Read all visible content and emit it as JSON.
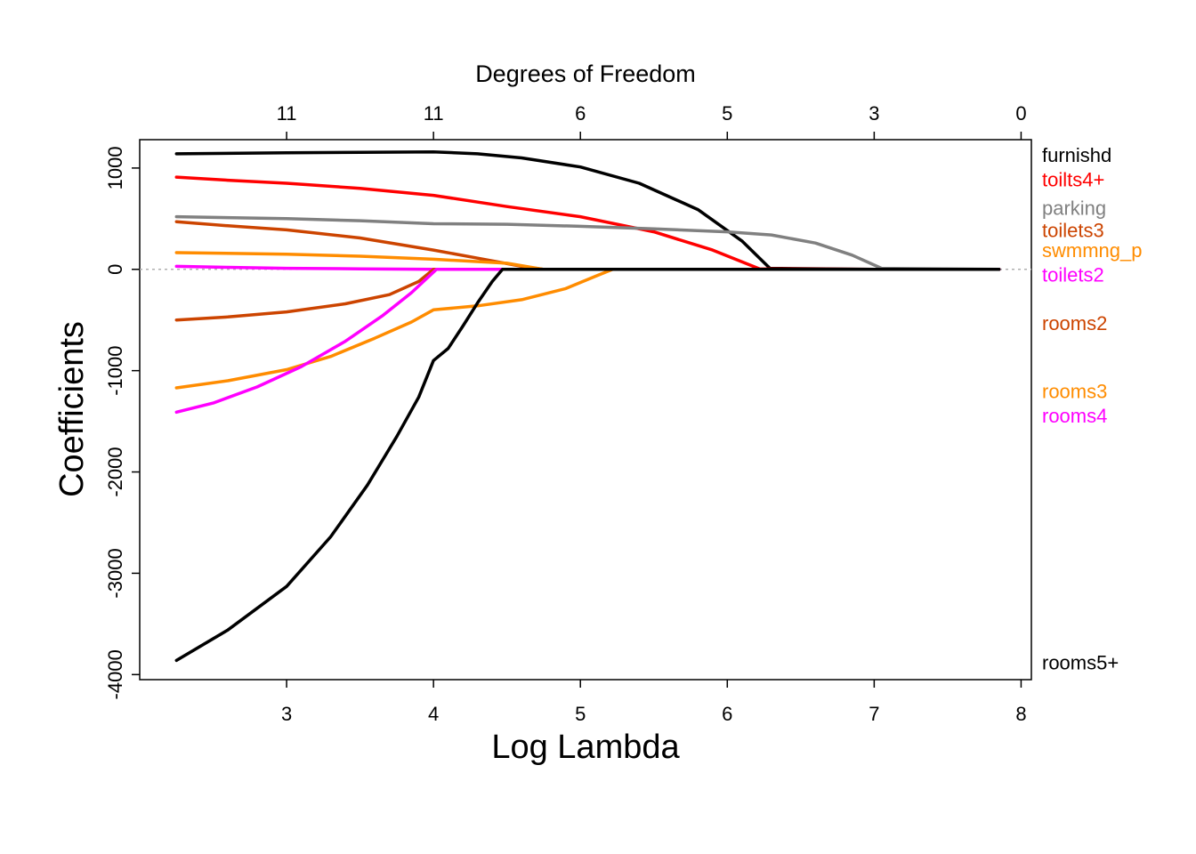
{
  "chart_data": {
    "type": "line",
    "title": "",
    "xlabel": "Log Lambda",
    "ylabel": "Coefficients",
    "top_axis_label": "Degrees of Freedom",
    "xlim": [
      2.0,
      8.07
    ],
    "ylim": [
      -4050,
      1280
    ],
    "x_ticks": [
      3,
      4,
      5,
      6,
      7,
      8
    ],
    "y_ticks": [
      -4000,
      -3000,
      -2000,
      -1000,
      0,
      1000
    ],
    "top_ticks": [
      {
        "x": 3,
        "label": "11"
      },
      {
        "x": 4,
        "label": "11"
      },
      {
        "x": 5,
        "label": "6"
      },
      {
        "x": 6,
        "label": "5"
      },
      {
        "x": 7,
        "label": "3"
      },
      {
        "x": 8,
        "label": "0"
      }
    ],
    "zero_line": true,
    "grid": false,
    "legend": "right-margin labels",
    "series": [
      {
        "name": "furnishd",
        "color": "#000000",
        "label_y": 1130,
        "points": [
          [
            2.25,
            1140
          ],
          [
            3.0,
            1150
          ],
          [
            3.5,
            1155
          ],
          [
            4.0,
            1160
          ],
          [
            4.3,
            1140
          ],
          [
            4.6,
            1100
          ],
          [
            5.0,
            1010
          ],
          [
            5.4,
            850
          ],
          [
            5.8,
            590
          ],
          [
            6.1,
            280
          ],
          [
            6.29,
            10
          ],
          [
            7.0,
            0
          ],
          [
            7.85,
            0
          ]
        ]
      },
      {
        "name": "toilts4+",
        "color": "#ff0000",
        "label_y": 890,
        "points": [
          [
            2.25,
            910
          ],
          [
            2.6,
            880
          ],
          [
            3.0,
            850
          ],
          [
            3.5,
            800
          ],
          [
            4.0,
            730
          ],
          [
            4.5,
            620
          ],
          [
            5.0,
            520
          ],
          [
            5.5,
            370
          ],
          [
            5.9,
            190
          ],
          [
            6.22,
            5
          ],
          [
            7.0,
            0
          ],
          [
            7.85,
            0
          ]
        ]
      },
      {
        "name": "parking",
        "color": "#808080",
        "label_y": 610,
        "points": [
          [
            2.25,
            520
          ],
          [
            3.0,
            500
          ],
          [
            3.5,
            480
          ],
          [
            4.0,
            450
          ],
          [
            4.5,
            445
          ],
          [
            5.0,
            425
          ],
          [
            5.5,
            400
          ],
          [
            6.0,
            370
          ],
          [
            6.3,
            340
          ],
          [
            6.6,
            260
          ],
          [
            6.85,
            140
          ],
          [
            7.05,
            10
          ],
          [
            7.85,
            0
          ]
        ]
      },
      {
        "name": "toilets3",
        "color": "#cc4400",
        "label_y": 390,
        "points": [
          [
            2.25,
            470
          ],
          [
            2.6,
            430
          ],
          [
            3.0,
            390
          ],
          [
            3.5,
            310
          ],
          [
            4.0,
            190
          ],
          [
            4.3,
            110
          ],
          [
            4.6,
            30
          ],
          [
            4.75,
            0
          ],
          [
            7.85,
            0
          ]
        ]
      },
      {
        "name": "swmmng_p",
        "color": "#ff8c00",
        "label_y": 190,
        "points": [
          [
            2.25,
            165
          ],
          [
            3.0,
            150
          ],
          [
            3.5,
            130
          ],
          [
            4.0,
            100
          ],
          [
            4.5,
            60
          ],
          [
            4.75,
            0
          ],
          [
            7.85,
            0
          ]
        ]
      },
      {
        "name": "toilets2",
        "color": "#ff00ff",
        "label_y": -50,
        "points": [
          [
            2.25,
            30
          ],
          [
            2.6,
            20
          ],
          [
            3.0,
            10
          ],
          [
            3.5,
            5
          ],
          [
            4.0,
            0
          ],
          [
            7.85,
            0
          ]
        ]
      },
      {
        "name": "rooms2",
        "color": "#cc4400",
        "label_y": -530,
        "points": [
          [
            2.25,
            -500
          ],
          [
            2.6,
            -470
          ],
          [
            3.0,
            -420
          ],
          [
            3.4,
            -340
          ],
          [
            3.7,
            -250
          ],
          [
            3.9,
            -120
          ],
          [
            4.0,
            0
          ],
          [
            7.85,
            0
          ]
        ]
      },
      {
        "name": "rooms3",
        "color": "#ff8c00",
        "label_y": -1200,
        "points": [
          [
            2.25,
            -1170
          ],
          [
            2.6,
            -1100
          ],
          [
            3.0,
            -990
          ],
          [
            3.3,
            -860
          ],
          [
            3.6,
            -680
          ],
          [
            3.85,
            -520
          ],
          [
            4.0,
            -400
          ],
          [
            4.3,
            -360
          ],
          [
            4.6,
            -300
          ],
          [
            4.9,
            -190
          ],
          [
            5.1,
            -70
          ],
          [
            5.22,
            0
          ],
          [
            7.85,
            0
          ]
        ]
      },
      {
        "name": "rooms4",
        "color": "#ff00ff",
        "label_y": -1440,
        "points": [
          [
            2.25,
            -1410
          ],
          [
            2.5,
            -1320
          ],
          [
            2.8,
            -1160
          ],
          [
            3.1,
            -960
          ],
          [
            3.4,
            -710
          ],
          [
            3.65,
            -460
          ],
          [
            3.85,
            -230
          ],
          [
            4.02,
            0
          ],
          [
            7.85,
            0
          ]
        ]
      },
      {
        "name": "rooms5+",
        "color": "#000000",
        "label_y": -3880,
        "points": [
          [
            2.25,
            -3860
          ],
          [
            2.6,
            -3560
          ],
          [
            3.0,
            -3130
          ],
          [
            3.3,
            -2640
          ],
          [
            3.55,
            -2130
          ],
          [
            3.75,
            -1650
          ],
          [
            3.9,
            -1260
          ],
          [
            4.0,
            -900
          ],
          [
            4.1,
            -780
          ],
          [
            4.2,
            -560
          ],
          [
            4.3,
            -330
          ],
          [
            4.4,
            -120
          ],
          [
            4.47,
            0
          ],
          [
            7.85,
            0
          ]
        ]
      }
    ]
  }
}
